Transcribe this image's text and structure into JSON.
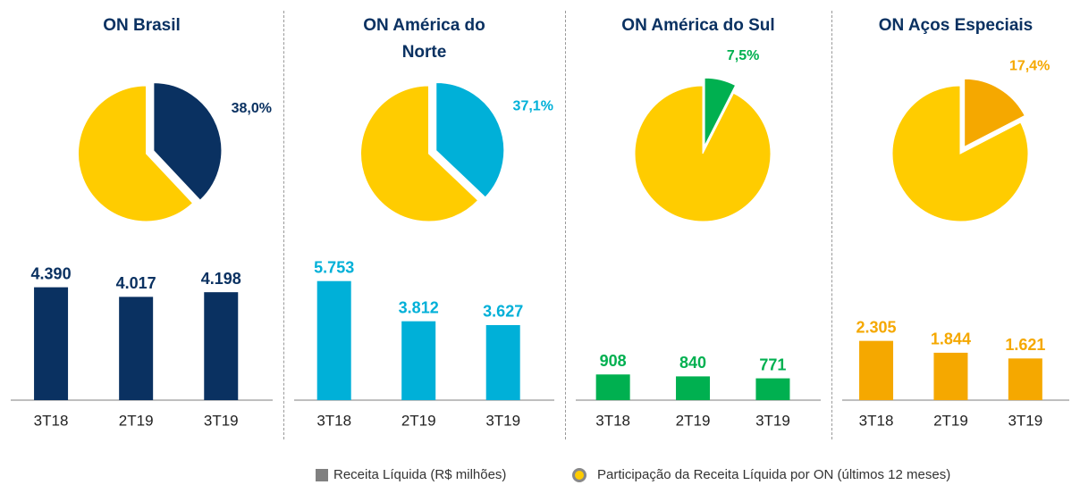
{
  "chart_data": [
    {
      "type": "pie",
      "title": "ON Brasil",
      "values": [
        38.0,
        62.0
      ],
      "value_labels": [
        "38,0%",
        null
      ],
      "colors": [
        "#0a3161",
        "#ffcc00"
      ]
    },
    {
      "type": "bar",
      "categories": [
        "3T18",
        "2T19",
        "3T19"
      ],
      "values": [
        4390,
        4017,
        4198
      ],
      "value_labels": [
        "4.390",
        "4.017",
        "4.198"
      ],
      "color": "#0a3161",
      "ylim": [
        0,
        6600
      ]
    },
    {
      "type": "pie",
      "title": "ON América do Norte",
      "values": [
        37.1,
        62.9
      ],
      "value_labels": [
        "37,1%",
        null
      ],
      "colors": [
        "#00b0d8",
        "#ffcc00"
      ]
    },
    {
      "type": "bar",
      "categories": [
        "3T18",
        "2T19",
        "3T19"
      ],
      "values": [
        5753,
        3812,
        3627
      ],
      "value_labels": [
        "5.753",
        "3.812",
        "3.627"
      ],
      "color": "#00b0d8",
      "ylim": [
        0,
        8200
      ]
    },
    {
      "type": "pie",
      "title": "ON América do Sul",
      "values": [
        7.5,
        92.5
      ],
      "value_labels": [
        "7,5%",
        null
      ],
      "colors": [
        "#00b050",
        "#ffcc00"
      ]
    },
    {
      "type": "bar",
      "categories": [
        "3T18",
        "2T19",
        "3T19"
      ],
      "values": [
        908,
        840,
        771
      ],
      "value_labels": [
        "908",
        "840",
        "771"
      ],
      "color": "#00b050",
      "ylim": [
        0,
        6000
      ]
    },
    {
      "type": "pie",
      "title": "ON Aços Especiais",
      "values": [
        17.4,
        82.6
      ],
      "value_labels": [
        "17,4%",
        null
      ],
      "colors": [
        "#f5a800",
        "#ffcc00"
      ]
    },
    {
      "type": "bar",
      "categories": [
        "3T18",
        "2T19",
        "3T19"
      ],
      "values": [
        2305,
        1844,
        1621
      ],
      "value_labels": [
        "2.305",
        "1.844",
        "1.621"
      ],
      "color": "#f5a800",
      "ylim": [
        0,
        6600
      ]
    }
  ],
  "legend": [
    {
      "label": "Receita Líquida (R$ milhões)",
      "color": "#808080"
    },
    {
      "label": "Participação da Receita Líquida por ON (últimos 12 meses)",
      "color": "#ffcc00"
    }
  ]
}
